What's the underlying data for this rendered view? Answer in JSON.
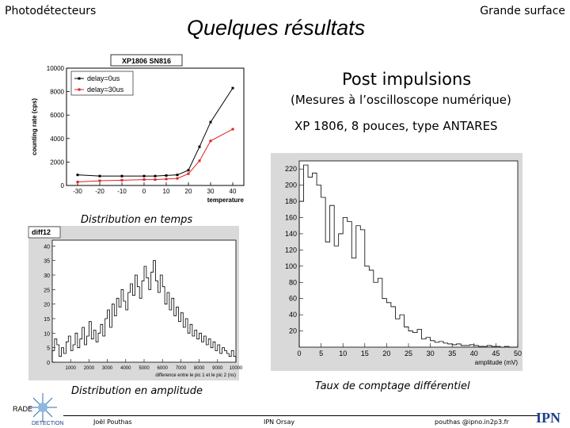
{
  "header": {
    "left": "Photodétecteurs",
    "right": "Grande surface",
    "title": "Quelques résultats"
  },
  "main": {
    "post_impulsions": "Post impulsions",
    "mesures": "(Mesures à l’oscilloscope numérique)",
    "xp": "XP 1806, 8 pouces, type ANTARES",
    "dist_temps": "Distribution en temps",
    "dist_amp": "Distribution en amplitude",
    "taux": "Taux de comptage différentiel"
  },
  "footer": {
    "name": "Joël Pouthas",
    "ipn": "IPN Orsay",
    "mail": "pouthas @ipno.in2p3.fr"
  },
  "logos": {
    "radet_top": "RADE",
    "radet_bottom": "DETECTION",
    "ipn": "IPN"
  },
  "chart_data": [
    {
      "type": "line",
      "title": "XP1806 SN816",
      "xlabel": "temperature",
      "ylabel": "counting rate (cps)",
      "xlim": [
        -35,
        45
      ],
      "ylim": [
        0,
        10000
      ],
      "xticks": [
        -30,
        -20,
        -10,
        0,
        10,
        20,
        30,
        40
      ],
      "yticks": [
        0,
        2000,
        4000,
        6000,
        8000,
        10000
      ],
      "legend_position": "top-left",
      "series": [
        {
          "name": "delay=0us",
          "color": "#000000",
          "x": [
            -30,
            -20,
            -10,
            0,
            5,
            10,
            15,
            20,
            25,
            30,
            40
          ],
          "y": [
            900,
            800,
            800,
            800,
            800,
            850,
            900,
            1300,
            3300,
            5400,
            8300
          ]
        },
        {
          "name": "delay=30us",
          "color": "#e02020",
          "x": [
            -30,
            -20,
            -10,
            0,
            5,
            10,
            15,
            20,
            25,
            30,
            40
          ],
          "y": [
            300,
            400,
            450,
            500,
            500,
            550,
            600,
            1000,
            2100,
            3800,
            4800
          ]
        }
      ]
    },
    {
      "type": "bar",
      "title": "diff12",
      "xlabel": "difference entre le pic 1 et le pic 2 (ns)",
      "xlim": [
        0,
        10000
      ],
      "ylim": [
        0,
        42
      ],
      "xticks": [
        1000,
        2000,
        3000,
        4000,
        5000,
        6000,
        7000,
        8000,
        9000,
        10000
      ],
      "yticks": [
        0,
        5,
        10,
        15,
        20,
        25,
        30,
        35,
        40
      ],
      "values": [
        4,
        8,
        6,
        2,
        5,
        3,
        7,
        9,
        4,
        6,
        10,
        5,
        8,
        12,
        6,
        9,
        14,
        8,
        11,
        7,
        10,
        13,
        9,
        15,
        18,
        12,
        20,
        16,
        22,
        19,
        25,
        21,
        18,
        24,
        27,
        23,
        30,
        26,
        22,
        28,
        33,
        29,
        25,
        31,
        35,
        28,
        24,
        30,
        26,
        20,
        24,
        18,
        22,
        16,
        19,
        14,
        17,
        12,
        15,
        10,
        13,
        9,
        11,
        8,
        10,
        7,
        9,
        6,
        8,
        5,
        7,
        4,
        6,
        3,
        5,
        4,
        3,
        2,
        4,
        2
      ]
    },
    {
      "type": "bar",
      "xlabel": "amplitude (mV)",
      "xlim": [
        0,
        50
      ],
      "ylim": [
        0,
        230
      ],
      "xticks": [
        0,
        5,
        10,
        15,
        20,
        25,
        30,
        35,
        40,
        45,
        50
      ],
      "yticks": [
        20,
        40,
        60,
        80,
        100,
        120,
        140,
        160,
        180,
        200,
        220
      ],
      "values": [
        180,
        225,
        210,
        215,
        200,
        185,
        130,
        175,
        125,
        140,
        160,
        155,
        110,
        150,
        145,
        100,
        95,
        80,
        85,
        60,
        55,
        50,
        35,
        40,
        25,
        20,
        18,
        22,
        10,
        12,
        8,
        6,
        7,
        5,
        4,
        3,
        4,
        2,
        2,
        3,
        2,
        1,
        1,
        2,
        1,
        1,
        0,
        1,
        0,
        0
      ]
    }
  ]
}
